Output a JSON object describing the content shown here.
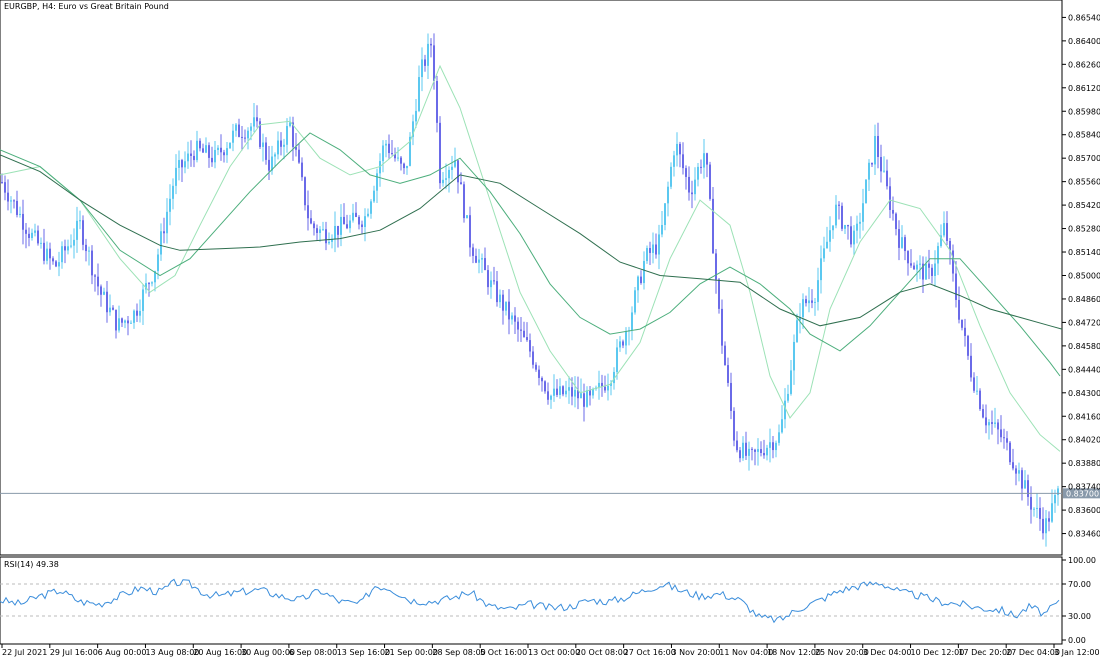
{
  "header": {
    "title": "EURGBP, H4:  Euro vs Great Britain Pound"
  },
  "price_box": "0.83700",
  "rsi": {
    "label": "RSI(14) 49.38"
  },
  "colors": {
    "bull_candle": "#5BC8F0",
    "bear_candle": "#6A6AE8",
    "ma_fast": "#9CE2B6",
    "ma_mid": "#4CAE7C",
    "ma_slow": "#2F6F4F",
    "rsi_line": "#3A8DDB",
    "current_price_line": "#8899AA"
  },
  "chart_data": [
    {
      "type": "candlestick",
      "symbol": "EURGBP",
      "timeframe": "H4",
      "ylim": [
        0.8335,
        0.8662
      ],
      "y_ticks": [
        "0.86540",
        "0.86400",
        "0.86260",
        "0.86120",
        "0.85980",
        "0.85840",
        "0.85700",
        "0.85560",
        "0.85420",
        "0.85280",
        "0.85140",
        "0.85000",
        "0.84860",
        "0.84720",
        "0.84580",
        "0.84440",
        "0.84300",
        "0.84160",
        "0.84020",
        "0.83880",
        "0.83740",
        "0.83600",
        "0.83460"
      ],
      "x_ticks": [
        "22 Jul 2021",
        "29 Jul 16:00",
        "6 Aug 00:00",
        "13 Aug 08:00",
        "20 Aug 16:00",
        "30 Aug 00:00",
        "6 Sep 08:00",
        "13 Sep 16:00",
        "21 Sep 00:00",
        "28 Sep 08:00",
        "5 Oct 16:00",
        "13 Oct 00:00",
        "20 Oct 08:00",
        "27 Oct 16:00",
        "3 Nov 20:00",
        "11 Nov 04:00",
        "18 Nov 12:00",
        "25 Nov 20:00",
        "3 Dec 04:00",
        "10 Dec 12:00",
        "17 Dec 20:00",
        "27 Dec 04:00",
        "3 Jan 12:00"
      ],
      "current_price": 0.837,
      "close_path": {
        "bar_positions": [
          0,
          30,
          55,
          80,
          100,
          118,
          135,
          155,
          175,
          195,
          215,
          235,
          255,
          270,
          290,
          310,
          325,
          345,
          365,
          385,
          405,
          420,
          432,
          440,
          455,
          470,
          490,
          510,
          530,
          550,
          570,
          590,
          610,
          630,
          645,
          660,
          675,
          690,
          705,
          720,
          735,
          750,
          765,
          780,
          800,
          815,
          835,
          855,
          875,
          885,
          900,
          915,
          930,
          945,
          955,
          970,
          985,
          1000,
          1015,
          1030,
          1045,
          1058
        ],
        "closes": [
          0.8558,
          0.8525,
          0.8505,
          0.853,
          0.849,
          0.847,
          0.8478,
          0.8505,
          0.856,
          0.8575,
          0.857,
          0.8585,
          0.859,
          0.8565,
          0.859,
          0.853,
          0.8525,
          0.853,
          0.8535,
          0.858,
          0.856,
          0.862,
          0.864,
          0.856,
          0.857,
          0.852,
          0.8495,
          0.8475,
          0.8455,
          0.8428,
          0.843,
          0.8425,
          0.844,
          0.8475,
          0.851,
          0.852,
          0.858,
          0.855,
          0.8575,
          0.847,
          0.84,
          0.839,
          0.8398,
          0.8405,
          0.848,
          0.849,
          0.854,
          0.852,
          0.858,
          0.8555,
          0.852,
          0.8505,
          0.85,
          0.853,
          0.849,
          0.8445,
          0.8415,
          0.8405,
          0.8388,
          0.8365,
          0.835,
          0.837
        ]
      },
      "moving_averages": [
        {
          "x": [
            0,
            40,
            80,
            120,
            150,
            175,
            200,
            230,
            260,
            290,
            320,
            350,
            380,
            410,
            440,
            460,
            490,
            520,
            550,
            580,
            610,
            640,
            670,
            700,
            730,
            750,
            770,
            790,
            810,
            830,
            860,
            890,
            920,
            950,
            980,
            1010,
            1040,
            1060
          ],
          "y": [
            0.856,
            0.8565,
            0.8545,
            0.851,
            0.849,
            0.85,
            0.853,
            0.8565,
            0.859,
            0.8592,
            0.857,
            0.856,
            0.8565,
            0.858,
            0.8625,
            0.86,
            0.8545,
            0.849,
            0.8455,
            0.843,
            0.8435,
            0.846,
            0.851,
            0.8545,
            0.853,
            0.849,
            0.844,
            0.8415,
            0.843,
            0.848,
            0.852,
            0.8545,
            0.854,
            0.8515,
            0.847,
            0.843,
            0.8405,
            0.8395
          ]
        },
        {
          "x": [
            0,
            40,
            80,
            120,
            160,
            190,
            220,
            250,
            280,
            310,
            340,
            370,
            400,
            430,
            460,
            490,
            520,
            550,
            580,
            610,
            640,
            670,
            700,
            730,
            760,
            790,
            810,
            840,
            870,
            900,
            930,
            960,
            990,
            1020,
            1050,
            1060
          ],
          "y": [
            0.8575,
            0.8565,
            0.8545,
            0.8515,
            0.85,
            0.851,
            0.853,
            0.855,
            0.8568,
            0.8585,
            0.8575,
            0.856,
            0.8555,
            0.856,
            0.857,
            0.855,
            0.8525,
            0.8495,
            0.8475,
            0.8465,
            0.8468,
            0.8478,
            0.8495,
            0.8505,
            0.8495,
            0.848,
            0.8465,
            0.8455,
            0.847,
            0.849,
            0.851,
            0.851,
            0.849,
            0.847,
            0.8448,
            0.844
          ]
        },
        {
          "x": [
            0,
            40,
            80,
            120,
            160,
            180,
            220,
            260,
            300,
            340,
            380,
            420,
            460,
            500,
            540,
            580,
            620,
            660,
            700,
            740,
            780,
            820,
            860,
            900,
            930,
            960,
            990,
            1020,
            1050,
            1062
          ],
          "y": [
            0.8572,
            0.8562,
            0.8545,
            0.853,
            0.8518,
            0.8515,
            0.8516,
            0.8517,
            0.852,
            0.8522,
            0.8527,
            0.854,
            0.856,
            0.8555,
            0.854,
            0.8525,
            0.8508,
            0.85,
            0.8498,
            0.8496,
            0.848,
            0.847,
            0.8475,
            0.849,
            0.8495,
            0.8488,
            0.848,
            0.8475,
            0.847,
            0.8468
          ]
        }
      ]
    },
    {
      "type": "line",
      "name": "RSI(14)",
      "ylim": [
        0,
        100
      ],
      "y_ticks": [
        "100.00",
        "70.00",
        "30.00",
        "0.00"
      ],
      "levels": [
        70,
        30
      ],
      "x": [
        0,
        20,
        40,
        60,
        80,
        100,
        120,
        140,
        160,
        175,
        190,
        205,
        220,
        240,
        260,
        280,
        300,
        320,
        340,
        360,
        375,
        390,
        410,
        430,
        450,
        470,
        490,
        510,
        530,
        550,
        570,
        590,
        610,
        630,
        650,
        665,
        680,
        700,
        720,
        740,
        760,
        780,
        800,
        820,
        840,
        860,
        880,
        900,
        920,
        940,
        960,
        980,
        1000,
        1015,
        1030,
        1045,
        1060
      ],
      "y": [
        50,
        45,
        55,
        62,
        48,
        45,
        55,
        65,
        60,
        72,
        70,
        58,
        55,
        60,
        63,
        55,
        50,
        62,
        48,
        45,
        68,
        65,
        50,
        48,
        52,
        60,
        42,
        38,
        45,
        40,
        42,
        50,
        48,
        55,
        65,
        70,
        62,
        55,
        58,
        50,
        28,
        25,
        40,
        50,
        62,
        68,
        72,
        60,
        55,
        48,
        45,
        40,
        38,
        30,
        42,
        32,
        49.38
      ]
    }
  ]
}
